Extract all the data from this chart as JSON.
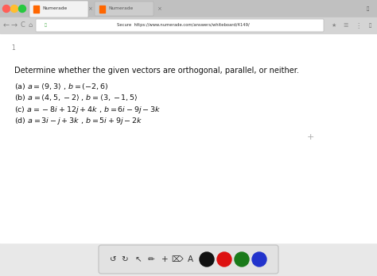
{
  "bg_color": "#e8e8e8",
  "page_bg": "#ffffff",
  "title_text": "Determine whether the given vectors are orthogonal, parallel, or neither.",
  "line1": "(a) $a = \\langle 9, 3 \\rangle$ , $b = (-2, 6)$",
  "line2": "(b) $a = \\langle 4, 5, -2 \\rangle$ , $b = \\langle 3, -1, 5 \\rangle$",
  "line3": "(c) $a = -8i + 12j + 4k$ , $b = 6i - 9j - 3k$",
  "line4": "(d) $a = 3i - j + 3k$ , $b = 5i + 9j - 2k$",
  "browser_bar_color": "#d4d4d4",
  "tab_bar_color": "#c0c0c0",
  "tab1_color": "#f2f2f2",
  "tab2_color": "#cccccc",
  "url_bar_color": "#ffffff",
  "url_text": "Secure  https://www.numerade.com/answers/whiteboard/4149/",
  "tab1_label": "Numerade",
  "tab2_label": "Numerade",
  "dot_colors": [
    "#ff5f57",
    "#ffbd2e",
    "#28c840"
  ],
  "page_number": "1",
  "plus_color": "#aaaaaa",
  "toolbar_bg": "#e2e2e2",
  "toolbar_edge": "#c0c0c0",
  "circle_colors": [
    "#111111",
    "#dd1111",
    "#1a7a1a",
    "#2233cc"
  ],
  "icon_color": "#333333",
  "text_color": "#111111",
  "title_fontsize": 7.0,
  "line_fontsize": 6.8,
  "favicon_color": "#ff6600",
  "lock_color": "#44aa44",
  "star_color": "#888888",
  "nav_color": "#888888"
}
